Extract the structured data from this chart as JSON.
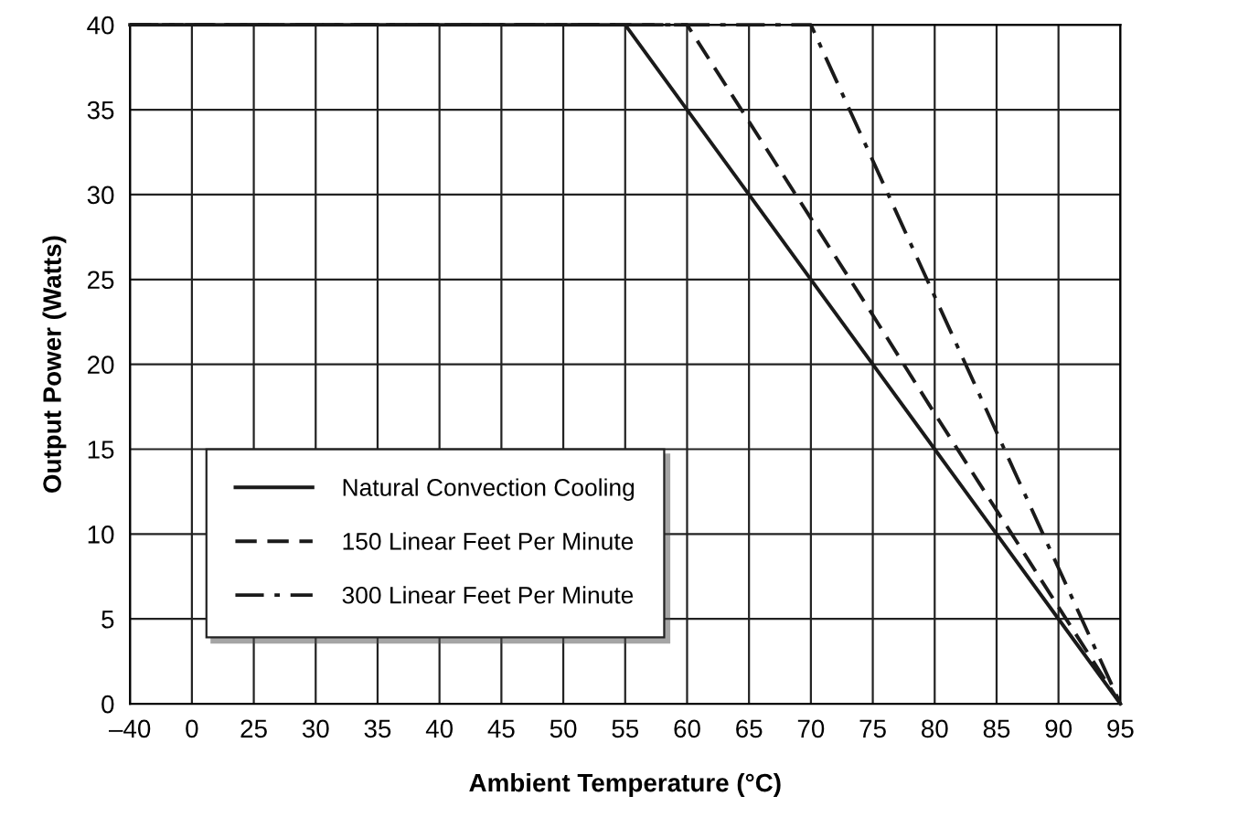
{
  "chart_data": {
    "type": "line",
    "xlabel": "Ambient Temperature (°C)",
    "ylabel": "Output Power (Watts)",
    "categories": [
      "–40",
      "0",
      "25",
      "30",
      "35",
      "40",
      "45",
      "50",
      "55",
      "60",
      "65",
      "70",
      "75",
      "80",
      "85",
      "90",
      "95"
    ],
    "series": [
      {
        "name": "Natural Convection Cooling",
        "color": "#1a1a1a",
        "line_style": "solid",
        "values": [
          40,
          40,
          40,
          40,
          40,
          40,
          40,
          40,
          40,
          35,
          30,
          25,
          20,
          15,
          10,
          5,
          0
        ]
      },
      {
        "name": "150 Linear Feet Per Minute",
        "color": "#1a1a1a",
        "line_style": "dashed",
        "values": [
          40,
          40,
          40,
          40,
          40,
          40,
          40,
          40,
          40,
          40,
          34.3,
          28.6,
          22.9,
          17.1,
          11.4,
          5.7,
          0
        ]
      },
      {
        "name": "300 Linear Feet Per Minute",
        "color": "#1a1a1a",
        "line_style": "dashdot",
        "values": [
          40,
          40,
          40,
          40,
          40,
          40,
          40,
          40,
          40,
          40,
          40,
          40,
          32,
          24,
          16,
          8,
          0
        ]
      }
    ],
    "ylim": [
      0,
      40
    ],
    "yticks": [
      0,
      5,
      10,
      15,
      20,
      25,
      30,
      35,
      40
    ],
    "grid": true,
    "legend": "bottom left",
    "marker": "none"
  }
}
